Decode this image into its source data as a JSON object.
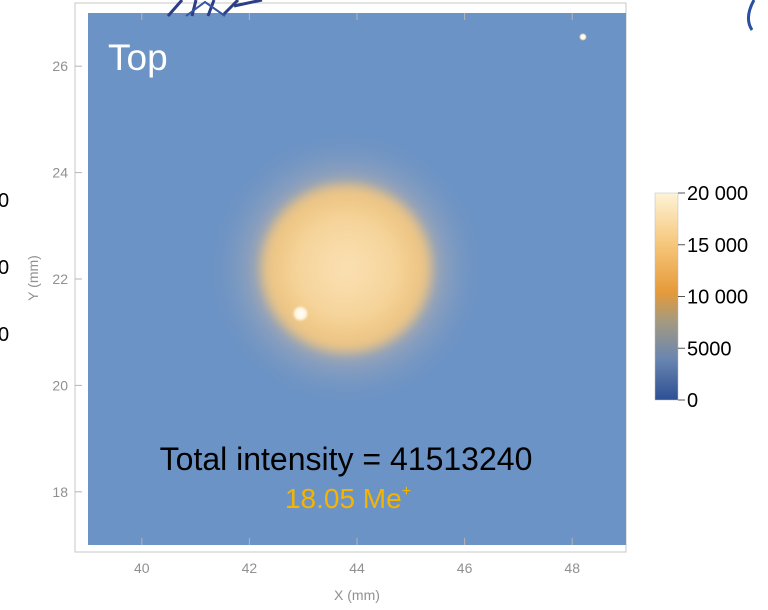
{
  "chart_data": {
    "type": "heatmap",
    "title": "Top",
    "xlabel": "X (mm)",
    "ylabel": "Y (mm)",
    "xlim": [
      39,
      49
    ],
    "ylim": [
      17,
      27
    ],
    "x_ticks": [
      40,
      42,
      44,
      46,
      48
    ],
    "y_ticks": [
      18,
      20,
      22,
      24,
      26
    ],
    "x_tick_labels": [
      "40",
      "42",
      "44",
      "46",
      "48"
    ],
    "y_tick_labels": [
      "18",
      "20",
      "22",
      "24",
      "26"
    ],
    "colorbar": {
      "range": [
        0,
        20000
      ],
      "ticks": [
        0,
        5000,
        10000,
        15000,
        20000
      ],
      "tick_labels": [
        "0",
        "5000",
        "10 000",
        "15 000",
        "20 000"
      ],
      "colors": [
        "#2d4f94",
        "#6a86b0",
        "#a49a80",
        "#e59a3a",
        "#f6c67a",
        "#fdf3d6"
      ]
    },
    "background_level": 4500,
    "spot": {
      "center": [
        43.8,
        22.2
      ],
      "radius_mm": 1.6,
      "halo_radius_mm": 2.6,
      "peak_level": 16000
    },
    "hot_pixels": [
      [
        42.95,
        21.35
      ],
      [
        48.2,
        26.55
      ]
    ],
    "annotations": {
      "total_intensity": "Total intensity = 41513240",
      "charge_value": "18.05 Me",
      "charge_superscript": "+"
    },
    "colors": {
      "background": "#6c93c5",
      "charge_text": "#f5b400",
      "title_text": "#ffffff"
    }
  },
  "left_edge_labels": [
    "0",
    "0",
    "0"
  ]
}
